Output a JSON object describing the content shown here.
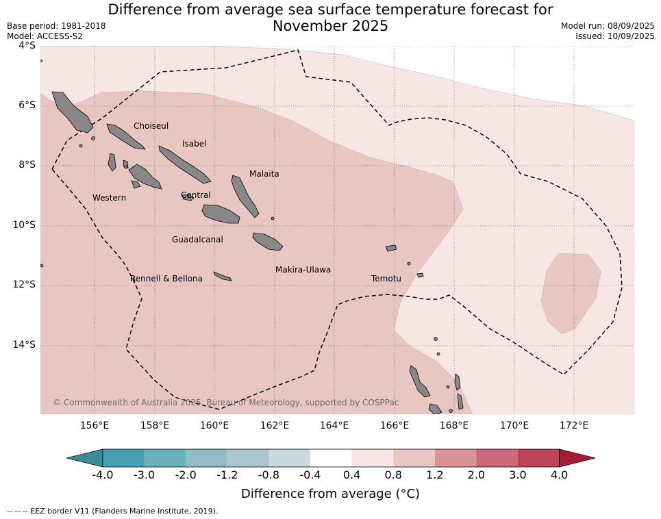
{
  "title_line1": "Difference from average sea surface temperature forecast for",
  "title_line2": "November 2025",
  "base_period": "Base period: 1981-2018",
  "model": "Model: ACCESS-S2",
  "model_run": "Model run: 08/09/2025",
  "issued": "Issued: 10/09/2025",
  "lat_labels": [
    "4°S",
    "6°S",
    "8°S",
    "10°S",
    "12°S",
    "14°S"
  ],
  "lon_labels": [
    "156°E",
    "158°E",
    "160°E",
    "162°E",
    "164°E",
    "166°E",
    "168°E",
    "170°E",
    "172°E"
  ],
  "place_labels": {
    "choiseul": "Choiseul",
    "isabel": "Isabel",
    "malaita": "Malaita",
    "western": "Western",
    "central": "Central",
    "guadalcanal": "Guadalcanal",
    "rennell": "Rennell & Bellona",
    "makira": "Makira-Ulawa",
    "temotu": "Temotu"
  },
  "copyright": "© Commonwealth of Australia 2025, Bureau of Meteorology, supported by COSPPac",
  "colorbar": {
    "ticks": [
      "-4.0",
      "-3.0",
      "-2.0",
      "-1.2",
      "-0.8",
      "-0.4",
      "0.4",
      "0.8",
      "1.2",
      "2.0",
      "3.0",
      "4.0"
    ],
    "colors": [
      "#45a0b0",
      "#6aafbc",
      "#8fbcc5",
      "#a9c7cc",
      "#c9d9dc",
      "#ffffff",
      "#f6e7e5",
      "#e8c7c3",
      "#d9949a",
      "#c9697a",
      "#bd4457"
    ],
    "under_color": "#3d8b95",
    "over_color": "#a81c38",
    "label": "Difference from average ($^\\circ$C)",
    "label_display": "Difference from average (°C)"
  },
  "eez_note": "--  --  -- EEZ border V11 (Flanders Marine Institute, 2019).",
  "colors": {
    "anomaly_0_4_to_0_8": "#f6e7e5",
    "anomaly_0_8_to_1_2": "#e8c7c3",
    "land": "#888888"
  }
}
